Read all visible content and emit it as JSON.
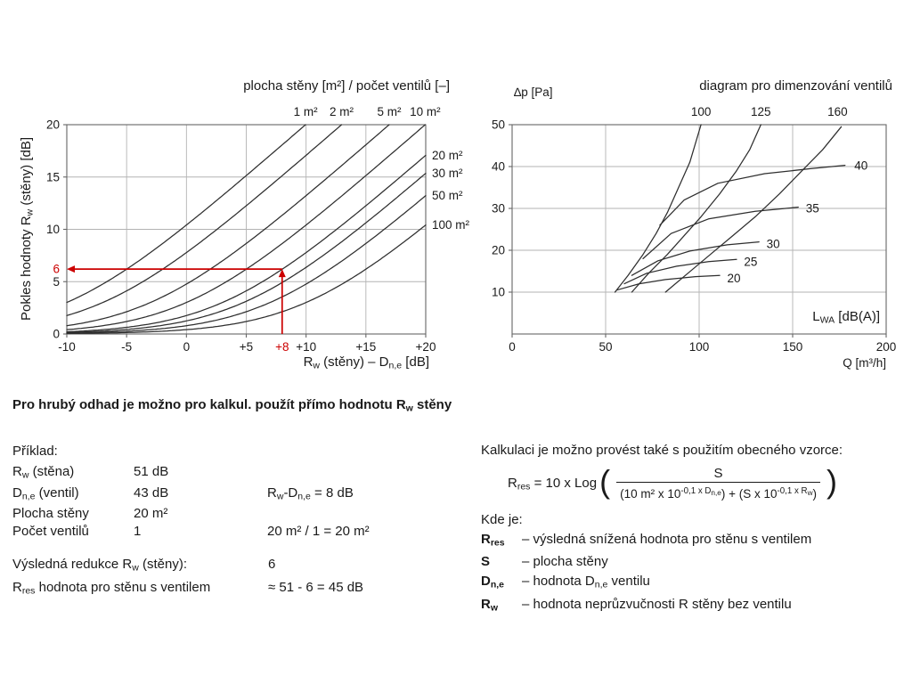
{
  "page": {
    "background": "#ffffff",
    "ink": "#1a1a1a",
    "accent_red": "#cc0000"
  },
  "left_chart_ui": {
    "title": "plocha stěny [m²] / počet ventilů [–]",
    "y_axis_label_html": "Pokles hodnoty R<sub>w</sub> (stěny) [dB]",
    "x_axis_label_html": "R<sub>w</sub> (stěny) – D<sub>n,e</sub> [dB]"
  },
  "right_chart_ui": {
    "title": "diagram pro dimenzování ventilů",
    "inner_label_html": "L<sub>WA</sub> [dB(A)]"
  },
  "chart_data": [
    {
      "id": "wall-area-reduction-chart",
      "type": "line",
      "title": "plocha stěny [m²] / počet ventilů [–]",
      "xlabel": "Rw (stěny) – Dn,e [dB]",
      "ylabel": "Pokles hodnoty Rw (stěny) [dB]",
      "xlim": [
        -10,
        20
      ],
      "ylim": [
        0,
        20
      ],
      "grid": true,
      "x_ticks": [
        {
          "v": -10,
          "t": "-10"
        },
        {
          "v": -5,
          "t": "-5"
        },
        {
          "v": 0,
          "t": "0"
        },
        {
          "v": 5,
          "t": "+5"
        },
        {
          "v": 10,
          "t": "+10"
        },
        {
          "v": 15,
          "t": "+15"
        },
        {
          "v": 20,
          "t": "+20"
        }
      ],
      "y_ticks": [
        {
          "v": 0,
          "t": "0"
        },
        {
          "v": 5,
          "t": "5"
        },
        {
          "v": 10,
          "t": "10"
        },
        {
          "v": 15,
          "t": "15"
        },
        {
          "v": 20,
          "t": "20"
        }
      ],
      "series_model": "reduction_dB = 10*log10(1 + (10/area_m2)*10^(x/10))",
      "series": [
        {
          "area_m2": 1,
          "label": "1 m²",
          "label_pos": "top"
        },
        {
          "area_m2": 2,
          "label": "2 m²",
          "label_pos": "top"
        },
        {
          "area_m2": 5,
          "label": "5 m²",
          "label_pos": "top"
        },
        {
          "area_m2": 10,
          "label": "10 m²",
          "label_pos": "top"
        },
        {
          "area_m2": 20,
          "label": "20 m²",
          "label_pos": "right"
        },
        {
          "area_m2": 30,
          "label": "30 m²",
          "label_pos": "right"
        },
        {
          "area_m2": 50,
          "label": "50 m²",
          "label_pos": "right"
        },
        {
          "area_m2": 100,
          "label": "100 m²",
          "label_pos": "right"
        }
      ],
      "annotation": {
        "x": 8,
        "y": 6.2,
        "x_label": "+8",
        "y_label": "6",
        "color": "#cc0000"
      }
    },
    {
      "id": "valve-sizing-chart",
      "type": "line",
      "title": "diagram pro dimenzování ventilů",
      "xlabel": "Q [m³/h]",
      "ylabel": "∆p [Pa]",
      "noise_unit_label": "LWA [dB(A)]",
      "xlim": [
        0,
        200
      ],
      "ylim": [
        0,
        50
      ],
      "grid": true,
      "x_ticks": [
        {
          "v": 0,
          "t": "0"
        },
        {
          "v": 50,
          "t": "50"
        },
        {
          "v": 100,
          "t": "100"
        },
        {
          "v": 150,
          "t": "150"
        },
        {
          "v": 200,
          "t": "200"
        }
      ],
      "y_ticks": [
        {
          "v": 10,
          "t": "10"
        },
        {
          "v": 20,
          "t": "20"
        },
        {
          "v": 30,
          "t": "30"
        },
        {
          "v": 40,
          "t": "40"
        },
        {
          "v": 50,
          "t": "50"
        }
      ],
      "valve_size_series": [
        {
          "label": "100",
          "points": [
            [
              55,
              10
            ],
            [
              62,
              14
            ],
            [
              70,
              19
            ],
            [
              77,
              24
            ],
            [
              83,
              29
            ],
            [
              89,
              35
            ],
            [
              95,
              41
            ],
            [
              101,
              50
            ]
          ],
          "top_label_x": 101
        },
        {
          "label": "125",
          "points": [
            [
              64,
              10
            ],
            [
              73,
              14.5
            ],
            [
              83,
              19
            ],
            [
              92,
              23.5
            ],
            [
              101,
              28
            ],
            [
              111,
              33.5
            ],
            [
              120,
              39
            ],
            [
              127,
              44
            ],
            [
              133,
              50
            ]
          ],
          "top_label_x": 133
        },
        {
          "label": "160",
          "points": [
            [
              82,
              10
            ],
            [
              94,
              14.5
            ],
            [
              106,
              19
            ],
            [
              118,
              23.5
            ],
            [
              130,
              28
            ],
            [
              143,
              33.5
            ],
            [
              155,
              39
            ],
            [
              166,
              44
            ],
            [
              176,
              49.5
            ]
          ],
          "top_label_x": 174
        }
      ],
      "noise_level_series": [
        {
          "label": "20",
          "points": [
            [
              56,
              10.5
            ],
            [
              68,
              12
            ],
            [
              82,
              13
            ],
            [
              98,
              13.7
            ],
            [
              111,
              14
            ]
          ],
          "label_at": [
            115,
            13.3
          ]
        },
        {
          "label": "25",
          "points": [
            [
              60,
              12
            ],
            [
              72,
              14.5
            ],
            [
              88,
              16.2
            ],
            [
              105,
              17.3
            ],
            [
              120,
              17.8
            ]
          ],
          "label_at": [
            124,
            17.2
          ]
        },
        {
          "label": "30",
          "points": [
            [
              64,
              14
            ],
            [
              78,
              17.5
            ],
            [
              95,
              19.8
            ],
            [
              115,
              21.3
            ],
            [
              132,
              22
            ]
          ],
          "label_at": [
            136,
            21.5
          ]
        },
        {
          "label": "35",
          "points": [
            [
              70,
              18
            ],
            [
              85,
              24
            ],
            [
              105,
              27.5
            ],
            [
              130,
              29.3
            ],
            [
              153,
              30.3
            ]
          ],
          "label_at": [
            157,
            30
          ]
        },
        {
          "label": "40",
          "points": [
            [
              79,
              26
            ],
            [
              92,
              32
            ],
            [
              110,
              36
            ],
            [
              135,
              38.3
            ],
            [
              160,
              39.5
            ],
            [
              178,
              40.3
            ]
          ],
          "label_at": [
            183,
            40.2
          ]
        }
      ]
    }
  ],
  "note_heading_html": "Pro hrubý odhad je možno pro kalkul. použít přímo hodnotu R<sub>w</sub> stěny",
  "example": {
    "heading": "Příklad:",
    "rows": [
      {
        "label_html": "R<sub>w</sub> (stěna)",
        "value": "51 dB",
        "note_html": ""
      },
      {
        "label_html": "D<sub>n,e</sub> (ventil)",
        "value": "43 dB",
        "note_html": "R<sub>w</sub>-D<sub>n,e</sub> = 8 dB"
      },
      {
        "label_html": "Plocha stěny",
        "value": "20 m²",
        "note_html": ""
      },
      {
        "label_html": "Počet ventilů",
        "value": "1",
        "note_html": "20 m² / 1 = 20 m²"
      }
    ],
    "results": [
      {
        "label_html": "Výsledná redukce R<sub>w</sub> (stěny):",
        "value_html": "6"
      },
      {
        "label_html": "R<sub>res</sub> hodnota pro stěnu s ventilem",
        "value_html": "≈ 51 - 6 = 45 dB"
      }
    ]
  },
  "formula_block": {
    "intro": "Kalkulaci je možno provést také s použitím obecného vzorce:",
    "lhs_html": "R<sub>res</sub> = 10 x Log",
    "paren_open": "(",
    "paren_close": ")",
    "numerator": "S",
    "denominator_html": "(10 m² x 10<sup>-0,1 x D<sub>n,e</sub></sup>) + (S x 10<sup>-0,1 x R<sub>w</sub></sup>)",
    "where_heading": "Kde je:",
    "definitions": [
      {
        "term_html": "R<sub>res</sub>",
        "desc_html": "– výsledná snížená hodnota pro stěnu s ventilem"
      },
      {
        "term_html": "S",
        "desc_html": "– plocha stěny"
      },
      {
        "term_html": "D<sub>n,e</sub>",
        "desc_html": "– hodnota D<sub>n,e</sub> ventilu"
      },
      {
        "term_html": "R<sub>w</sub>",
        "desc_html": "– hodnota neprůzvučnosti R stěny bez ventilu"
      }
    ]
  }
}
